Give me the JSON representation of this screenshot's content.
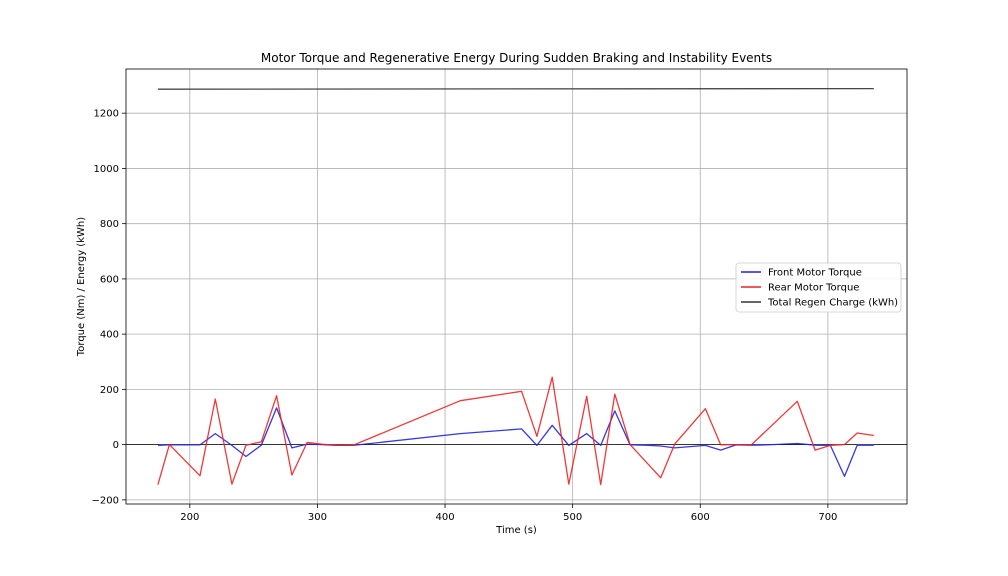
{
  "chart_data": {
    "type": "line",
    "title": "Motor Torque and Regenerative Energy During Sudden Braking and Instability Events",
    "xlabel": "Time (s)",
    "ylabel": "Torque (Nm) / Energy (kWh)",
    "xlim": [
      150,
      762
    ],
    "ylim": [
      -215,
      1360
    ],
    "x_ticks": [
      200,
      300,
      400,
      500,
      600,
      700
    ],
    "y_ticks": [
      -200,
      0,
      200,
      400,
      600,
      800,
      1000,
      1200
    ],
    "grid": true,
    "zero_line": true,
    "legend_position": "center-right",
    "series": [
      {
        "name": "Front Motor Torque",
        "color": "#2222dd",
        "x": [
          175,
          184,
          198,
          208,
          220,
          233,
          244,
          256,
          268,
          280,
          292,
          303,
          315,
          328,
          412,
          460,
          472,
          484,
          497,
          511,
          522,
          533,
          545,
          557,
          569,
          580,
          604,
          616,
          628,
          640,
          652,
          676,
          690,
          702,
          713,
          723,
          736
        ],
        "y": [
          -3,
          -1,
          -1,
          -1,
          40,
          -3,
          -43,
          -2,
          133,
          -12,
          2,
          0,
          -3,
          -3,
          40,
          57,
          -3,
          70,
          -3,
          40,
          -3,
          122,
          -1,
          -2,
          -5,
          -12,
          -3,
          -20,
          -1,
          -2,
          -1,
          4,
          -2,
          -3,
          -115,
          -2,
          -2
        ]
      },
      {
        "name": "Rear Motor Torque",
        "color": "#ee2222",
        "x": [
          175,
          184,
          208,
          220,
          233,
          244,
          256,
          268,
          280,
          292,
          303,
          315,
          328,
          412,
          460,
          472,
          484,
          497,
          511,
          522,
          533,
          545,
          569,
          580,
          604,
          616,
          628,
          640,
          676,
          690,
          702,
          713,
          723,
          736
        ],
        "y": [
          -145,
          0,
          -113,
          165,
          -143,
          -2,
          10,
          177,
          -110,
          8,
          2,
          -3,
          -2,
          159,
          193,
          30,
          244,
          -143,
          175,
          -145,
          183,
          0,
          -120,
          2,
          130,
          -1,
          0,
          -1,
          157,
          -20,
          -3,
          0,
          42,
          33
        ]
      },
      {
        "name": "Total Regen Charge (kWh)",
        "color": "#333333",
        "x": [
          175,
          736
        ],
        "y": [
          1287,
          1289
        ]
      }
    ]
  }
}
